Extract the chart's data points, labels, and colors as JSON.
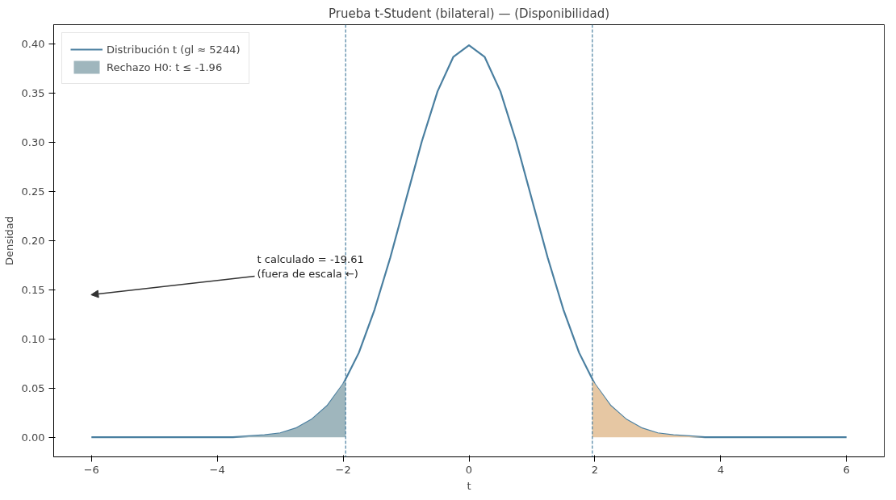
{
  "chart_data": {
    "type": "line",
    "title": "Prueba t-Student (bilateral) — (Disponibilidad)",
    "xlabel": "t",
    "ylabel": "Densidad",
    "series": [
      {
        "name": "Distribución t (gl ≈ 5244)",
        "color": "#4a7fa0",
        "x": [
          -6,
          -5,
          -4.5,
          -4,
          -3.75,
          -3.5,
          -3.25,
          -3,
          -2.75,
          -2.5,
          -2.25,
          -2,
          -1.75,
          -1.5,
          -1.25,
          -1,
          -0.75,
          -0.5,
          -0.25,
          0,
          0.25,
          0.5,
          0.75,
          1,
          1.25,
          1.5,
          1.75,
          2,
          2.25,
          2.5,
          2.75,
          3,
          3.25,
          3.5,
          3.75,
          4,
          4.5,
          5,
          6
        ],
        "values": [
          0,
          0,
          0,
          0,
          0,
          0.001,
          0.002,
          0.004,
          0.009,
          0.018,
          0.032,
          0.054,
          0.086,
          0.13,
          0.183,
          0.242,
          0.301,
          0.352,
          0.387,
          0.399,
          0.387,
          0.352,
          0.301,
          0.242,
          0.183,
          0.13,
          0.086,
          0.054,
          0.032,
          0.018,
          0.009,
          0.004,
          0.002,
          0.001,
          0,
          0,
          0,
          0,
          0
        ]
      },
      {
        "name": "Rechazo H0: t ≤ -1.96",
        "type": "area",
        "color": "#9fb6bd",
        "x": [
          -4,
          -3.75,
          -3.5,
          -3.25,
          -3,
          -2.75,
          -2.5,
          -2.25,
          -1.96
        ],
        "values": [
          0,
          0,
          0.001,
          0.002,
          0.004,
          0.009,
          0.018,
          0.032,
          0.058
        ]
      },
      {
        "type": "area",
        "color": "#e6c7a3",
        "x": [
          1.96,
          2.25,
          2.5,
          2.75,
          3,
          3.25,
          3.5,
          3.75,
          4
        ],
        "values": [
          0.058,
          0.032,
          0.018,
          0.009,
          0.004,
          0.002,
          0.001,
          0,
          0
        ]
      }
    ],
    "ref_lines": [
      {
        "axis": "x",
        "value": -1.96,
        "color": "#4a7fa0",
        "line_style": "dashed"
      },
      {
        "axis": "x",
        "value": 1.96,
        "color": "#4a7fa0",
        "line_style": "dashed"
      }
    ],
    "annotations": [
      "t calculado = -19.61\n(fuera de escala ←)"
    ],
    "xlim": [
      -6.6,
      6.6
    ],
    "ylim": [
      -0.02,
      0.42
    ],
    "xticks": [
      {
        "value": -6,
        "label": "−6"
      },
      {
        "value": -4,
        "label": "−4"
      },
      {
        "value": -2,
        "label": "−2"
      },
      0,
      2,
      4,
      6
    ],
    "yticks": [
      {
        "value": 0,
        "label": "0.00"
      },
      {
        "value": 0.05,
        "label": "0.05"
      },
      {
        "value": 0.1,
        "label": "0.10"
      },
      {
        "value": 0.15,
        "label": "0.15"
      },
      {
        "value": 0.2,
        "label": "0.20"
      },
      {
        "value": 0.25,
        "label": "0.25"
      },
      {
        "value": 0.3,
        "label": "0.30"
      },
      {
        "value": 0.35,
        "label": "0.35"
      },
      {
        "value": 0.4,
        "label": "0.40"
      }
    ],
    "legend": "top left",
    "grid": false
  }
}
